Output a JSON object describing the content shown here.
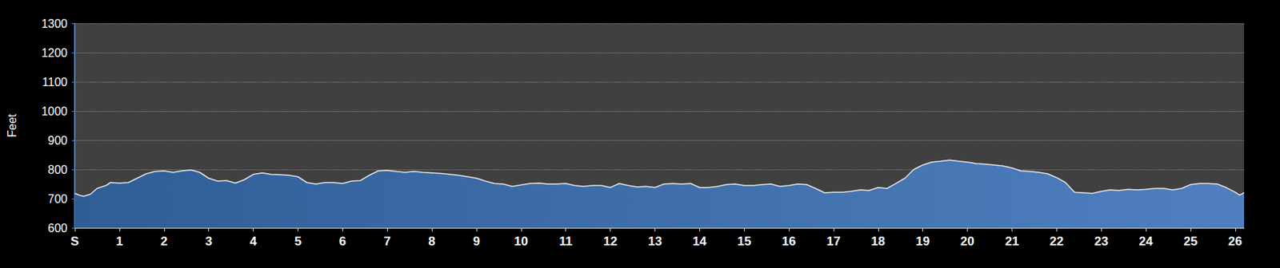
{
  "chart_data": {
    "type": "area",
    "ylabel": "Feet",
    "color": "#4f7fbf",
    "grid": true,
    "x": [
      0,
      0.1,
      0.2,
      0.35,
      0.5,
      0.7,
      0.8,
      1.0,
      1.2,
      1.4,
      1.6,
      1.8,
      2.0,
      2.2,
      2.4,
      2.6,
      2.8,
      3.0,
      3.2,
      3.4,
      3.6,
      3.8,
      4.0,
      4.2,
      4.4,
      4.6,
      4.8,
      5.0,
      5.2,
      5.4,
      5.6,
      5.8,
      6.0,
      6.2,
      6.4,
      6.6,
      6.8,
      7.0,
      7.2,
      7.4,
      7.6,
      7.8,
      8.0,
      8.2,
      8.4,
      8.6,
      8.8,
      9.0,
      9.2,
      9.4,
      9.6,
      9.8,
      10.0,
      10.2,
      10.4,
      10.6,
      10.8,
      11.0,
      11.2,
      11.4,
      11.6,
      11.8,
      12.0,
      12.2,
      12.4,
      12.6,
      12.8,
      13.0,
      13.2,
      13.4,
      13.6,
      13.8,
      14.0,
      14.2,
      14.4,
      14.6,
      14.8,
      15.0,
      15.2,
      15.4,
      15.6,
      15.8,
      16.0,
      16.2,
      16.4,
      16.6,
      16.8,
      17.0,
      17.2,
      17.4,
      17.6,
      17.8,
      18.0,
      18.2,
      18.4,
      18.6,
      18.8,
      19.0,
      19.2,
      19.4,
      19.6,
      19.8,
      20.0,
      20.2,
      20.4,
      20.6,
      20.8,
      21.0,
      21.2,
      21.4,
      21.6,
      21.8,
      22.0,
      22.2,
      22.4,
      22.6,
      22.8,
      23.0,
      23.2,
      23.4,
      23.6,
      23.8,
      24.0,
      24.2,
      24.4,
      24.6,
      24.8,
      25.0,
      25.2,
      25.4,
      25.6,
      25.8,
      26.0,
      26.1,
      26.2
    ],
    "values": [
      718,
      712,
      708,
      715,
      735,
      745,
      755,
      753,
      755,
      770,
      785,
      793,
      795,
      790,
      795,
      798,
      790,
      770,
      760,
      762,
      753,
      765,
      783,
      788,
      783,
      782,
      780,
      775,
      755,
      750,
      755,
      755,
      752,
      760,
      762,
      780,
      795,
      797,
      793,
      790,
      793,
      790,
      788,
      786,
      783,
      780,
      775,
      770,
      760,
      752,
      750,
      742,
      747,
      752,
      753,
      750,
      750,
      752,
      745,
      742,
      745,
      745,
      738,
      752,
      745,
      740,
      742,
      738,
      750,
      752,
      750,
      752,
      738,
      738,
      742,
      748,
      750,
      745,
      745,
      748,
      750,
      742,
      745,
      750,
      748,
      735,
      720,
      722,
      722,
      725,
      730,
      728,
      738,
      735,
      752,
      770,
      800,
      815,
      825,
      828,
      832,
      828,
      825,
      820,
      818,
      815,
      812,
      805,
      795,
      793,
      790,
      785,
      772,
      755,
      722,
      720,
      718,
      725,
      730,
      728,
      732,
      730,
      732,
      735,
      735,
      730,
      735,
      748,
      752,
      752,
      750,
      738,
      722,
      712,
      720
    ],
    "xlim": [
      0,
      26.2
    ],
    "xticks": [
      {
        "value": 0,
        "label": "S"
      },
      1,
      2,
      3,
      4,
      5,
      6,
      7,
      8,
      9,
      10,
      11,
      12,
      13,
      14,
      15,
      16,
      17,
      18,
      19,
      20,
      21,
      22,
      23,
      24,
      25,
      26
    ],
    "ylim": [
      600,
      1300
    ],
    "yticks": [
      600,
      700,
      800,
      900,
      1000,
      1100,
      1200,
      1300
    ]
  }
}
